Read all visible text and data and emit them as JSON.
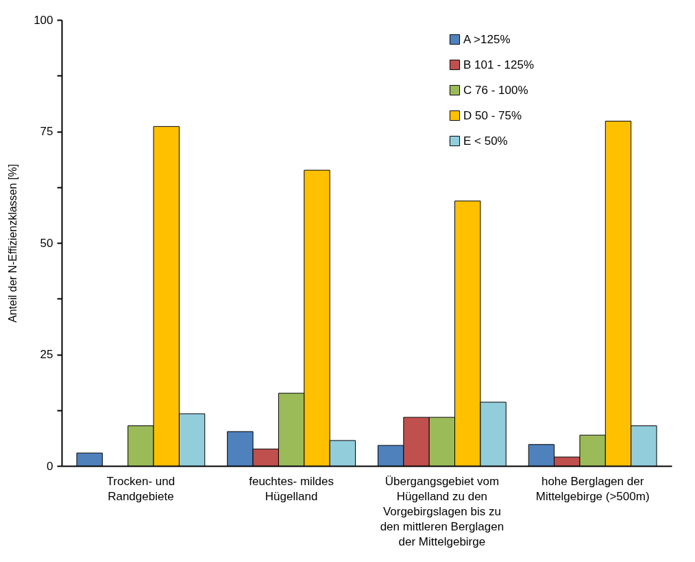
{
  "chart_data": {
    "type": "bar",
    "ylabel": "Anteil der  N-Effizienzklassen [%]",
    "categories": [
      "Trocken- und Randgebiete",
      "feuchtes- mildes Hügelland",
      "Übergangsgebiet vom Hügelland zu den Vorgebirgslagen bis zu den mittleren Berglagen der Mittelgebirge",
      "hohe Berglagen der Mittelgebirge (>500m)"
    ],
    "series": [
      {
        "name": "A    >125%",
        "color": "#4f81bd",
        "values": [
          2.9,
          7.7,
          4.6,
          4.8
        ]
      },
      {
        "name": "B   101 - 125%",
        "color": "#c0504d",
        "values": [
          null,
          3.8,
          10.9,
          2.0
        ]
      },
      {
        "name": "C   76 - 100%",
        "color": "#9bbb59",
        "values": [
          9.0,
          16.3,
          10.9,
          6.9
        ]
      },
      {
        "name": "D    50 - 75%",
        "color": "#ffc000",
        "values": [
          76.1,
          66.3,
          59.4,
          77.3
        ]
      },
      {
        "name": "E   < 50%",
        "color": "#92cddc",
        "values": [
          11.7,
          5.7,
          14.3,
          9.0
        ]
      }
    ],
    "ylim": [
      0,
      100
    ],
    "yticks": [
      0,
      {
        "value": 12.5,
        "label": null
      },
      25,
      {
        "value": 37.5,
        "label": null
      },
      50,
      {
        "value": 62.5,
        "label": null
      },
      75,
      {
        "value": 87.5,
        "label": null
      },
      100
    ],
    "grid": false,
    "legend": "top right"
  }
}
